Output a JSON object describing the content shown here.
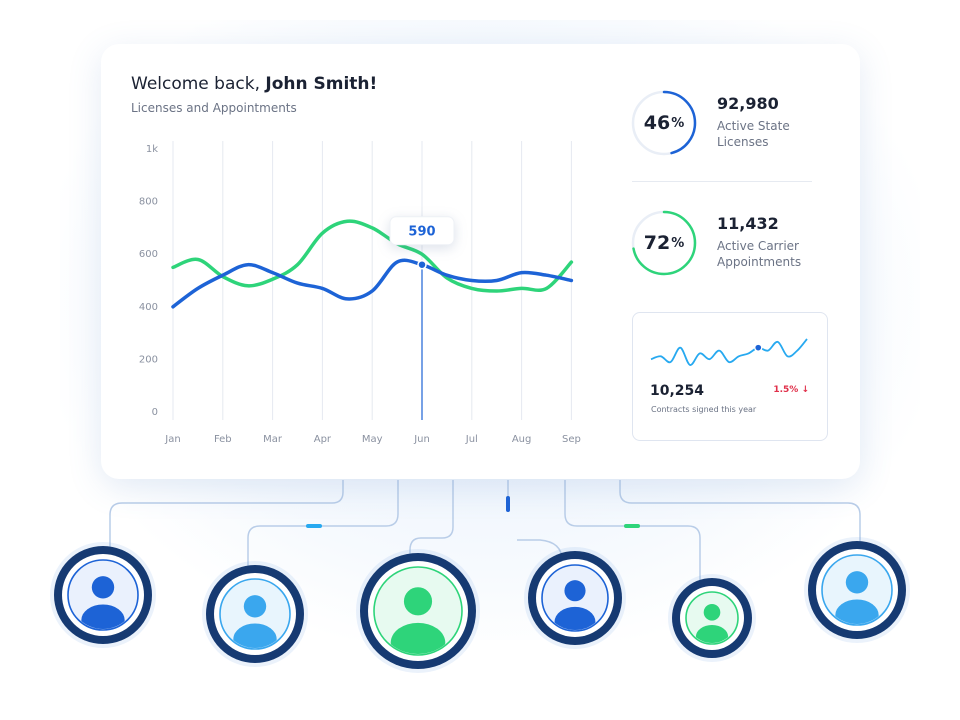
{
  "header": {
    "greeting": "Welcome back, ",
    "user_name": "John Smith!",
    "subtitle": "Licenses and Appointments"
  },
  "chart_data": {
    "type": "line",
    "categories": [
      "Jan",
      "Feb",
      "Mar",
      "Apr",
      "May",
      "Jun",
      "Jul",
      "Aug",
      "Sep"
    ],
    "y_tick_labels": [
      "0",
      "200",
      "400",
      "600",
      "800",
      "1k"
    ],
    "ylim": [
      0,
      1000
    ],
    "grid": "vertical",
    "series": [
      {
        "color": "#1d63d6",
        "x": [
          0,
          0.5,
          1,
          1.5,
          2,
          2.5,
          3,
          3.5,
          4,
          4.5,
          5,
          5.5,
          6,
          6.5,
          7,
          7.5,
          8
        ],
        "values": [
          400,
          470,
          520,
          560,
          530,
          490,
          470,
          430,
          460,
          570,
          560,
          520,
          500,
          500,
          530,
          520,
          500
        ]
      },
      {
        "color": "#2ed47a",
        "x": [
          0,
          0.5,
          1,
          1.5,
          2,
          2.5,
          3,
          3.5,
          4,
          4.5,
          5,
          5.5,
          6,
          6.5,
          7,
          7.5,
          8
        ],
        "values": [
          550,
          580,
          515,
          480,
          505,
          560,
          680,
          725,
          700,
          640,
          600,
          510,
          470,
          460,
          470,
          470,
          570
        ]
      }
    ],
    "tooltip": {
      "category": "Jun",
      "value": "590"
    }
  },
  "stats": [
    {
      "percent": "46",
      "percent_sign": "%",
      "value": "92,980",
      "label": "Active State Licenses",
      "fraction": 0.46,
      "color": "#1d63d6"
    },
    {
      "percent": "72",
      "percent_sign": "%",
      "value": "11,432",
      "label": "Active Carrier Appointments",
      "fraction": 0.72,
      "color": "#2ed47a"
    }
  ],
  "contracts": {
    "value": "10,254",
    "caption": "Contracts signed this year",
    "change": "1.5% ↓",
    "change_color": "#e0304a",
    "sparkline": [
      5,
      6,
      4,
      9,
      3,
      7,
      5,
      8,
      4,
      6,
      7,
      9,
      8,
      11,
      6,
      8,
      12
    ]
  },
  "avatars": [
    {
      "name": "avatar-1",
      "style": "blue",
      "icon": "user-icon"
    },
    {
      "name": "avatar-2",
      "style": "light-blue",
      "icon": "user-icon"
    },
    {
      "name": "avatar-3",
      "style": "green",
      "icon": "user-icon"
    },
    {
      "name": "avatar-4",
      "style": "blue",
      "icon": "user-icon"
    },
    {
      "name": "avatar-5",
      "style": "green",
      "icon": "user-icon"
    },
    {
      "name": "avatar-6",
      "style": "light-blue",
      "icon": "user-icon"
    }
  ],
  "colors": {
    "brand": "#1d63d6",
    "accent": "#2ed47a",
    "avatar_ring": "#163a72"
  }
}
